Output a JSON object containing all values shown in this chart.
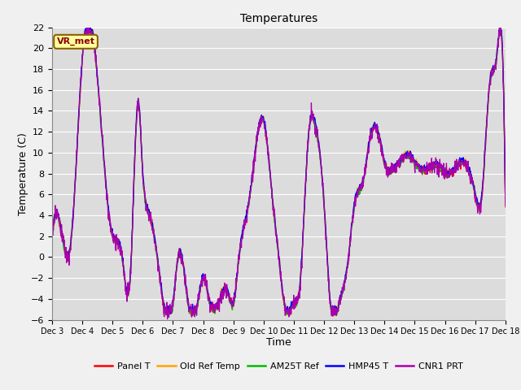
{
  "title": "Temperatures",
  "xlabel": "Time",
  "ylabel": "Temperature (C)",
  "ylim": [
    -6,
    22
  ],
  "yticks": [
    -6,
    -4,
    -2,
    0,
    2,
    4,
    6,
    8,
    10,
    12,
    14,
    16,
    18,
    20,
    22
  ],
  "x_tick_labels": [
    "Dec 3",
    "Dec 4",
    "Dec 5",
    "Dec 6",
    "Dec 7",
    "Dec 8",
    "Dec 9",
    "Dec 10",
    "Dec 11",
    "Dec 12",
    "Dec 13",
    "Dec 14",
    "Dec 15",
    "Dec 16",
    "Dec 17",
    "Dec 18"
  ],
  "annotation_text": "VR_met",
  "annotation_color": "#8B0000",
  "annotation_bg": "#FFFFA0",
  "annotation_border": "#8B6000",
  "lines": [
    {
      "label": "Panel T",
      "color": "#FF0000"
    },
    {
      "label": "Old Ref Temp",
      "color": "#FFA500"
    },
    {
      "label": "AM25T Ref",
      "color": "#00BB00"
    },
    {
      "label": "HMP45 T",
      "color": "#0000FF"
    },
    {
      "label": "CNR1 PRT",
      "color": "#AA00AA"
    }
  ],
  "plot_bg": "#DCDCDC",
  "fig_bg": "#F0F0F0",
  "grid_color": "#FFFFFF",
  "figsize": [
    6.4,
    4.8
  ],
  "dpi": 100,
  "waypoints_t": [
    0,
    0.25,
    0.6,
    1.0,
    1.4,
    1.7,
    2.0,
    2.3,
    2.6,
    2.85,
    3.0,
    3.2,
    3.5,
    3.7,
    4.0,
    4.2,
    4.5,
    4.8,
    5.0,
    5.2,
    5.5,
    5.8,
    6.0,
    6.2,
    6.5,
    6.8,
    7.0,
    7.3,
    7.5,
    7.7,
    8.0,
    8.2,
    8.5,
    8.7,
    9.0,
    9.2,
    9.5,
    9.8,
    10.0,
    10.3,
    10.5,
    10.8,
    11.0,
    11.3,
    11.5,
    11.8,
    12.0,
    12.3,
    12.5,
    12.8,
    13.0,
    13.3,
    13.5,
    13.8,
    14.0,
    14.2,
    14.5,
    14.7,
    14.9,
    15.0
  ],
  "waypoints_v": [
    2,
    3,
    1,
    19,
    20,
    10,
    2,
    0,
    -1,
    15,
    8,
    4,
    -0.5,
    -4.5,
    -4.5,
    0,
    -4.5,
    -4.5,
    -2,
    -4.5,
    -4.5,
    -3,
    -4.5,
    0,
    5,
    12,
    13,
    5,
    0,
    -4.5,
    -4.5,
    -3,
    12,
    13,
    5,
    -4.5,
    -4.5,
    0,
    5,
    7,
    11,
    12,
    9,
    8,
    9,
    10,
    9,
    8,
    8.5,
    9,
    8,
    8,
    9,
    8.5,
    6,
    5,
    17,
    19,
    20,
    5
  ]
}
